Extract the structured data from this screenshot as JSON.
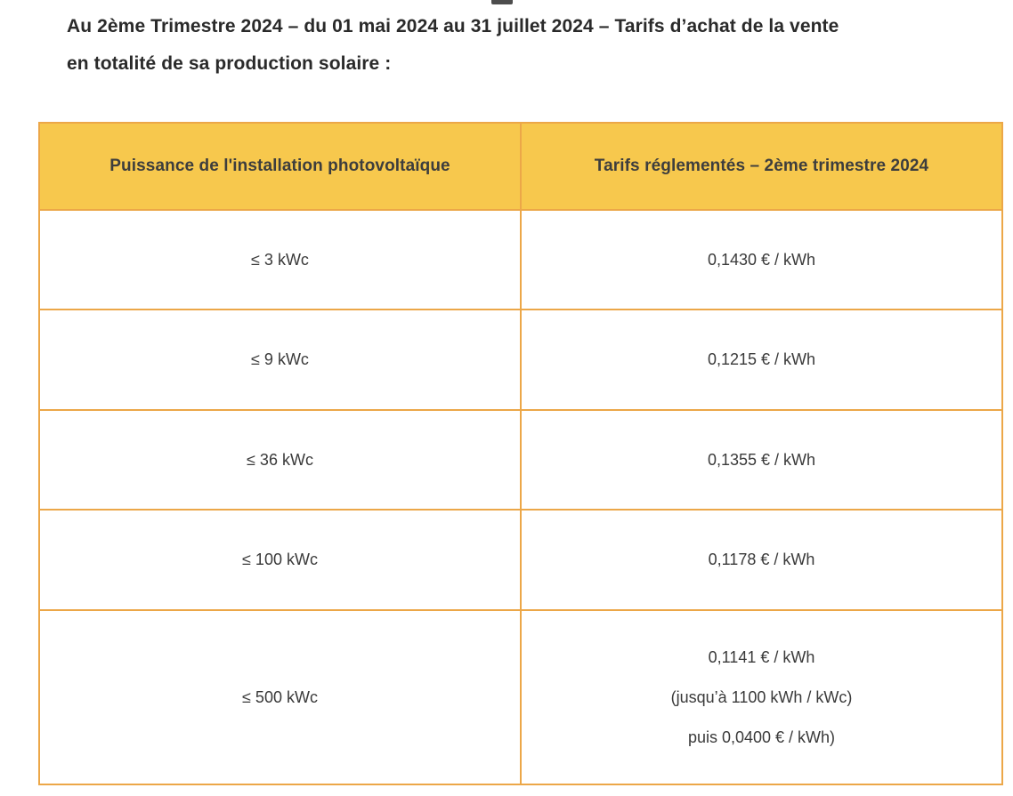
{
  "heading": {
    "line1": "Au 2ème Trimestre 2024 – du 01 mai 2024 au 31 juillet 2024 – Tarifs d’achat de la vente",
    "line2": "en totalité de sa production solaire :"
  },
  "table": {
    "headers": [
      "Puissance de l'installation photovoltaïque",
      "Tarifs réglementés – 2ème trimestre 2024"
    ],
    "rows": [
      {
        "power": "≤ 3 kWc",
        "tariff": "0,1430 € / kWh"
      },
      {
        "power": "≤ 9 kWc",
        "tariff": "0,1215 € / kWh"
      },
      {
        "power": "≤ 36 kWc",
        "tariff": "0,1355 € / kWh"
      },
      {
        "power": "≤ 100 kWc",
        "tariff": "0,1178 € / kWh"
      },
      {
        "power": "≤ 500 kWc",
        "tariff_lines": [
          "0,1141 € / kWh",
          "(jusqu’à 1100 kWh / kWc)",
          "puis 0,0400 € / kWh)"
        ]
      }
    ],
    "colors": {
      "header_bg": "#F7C84D",
      "border": "#ECA748"
    }
  }
}
